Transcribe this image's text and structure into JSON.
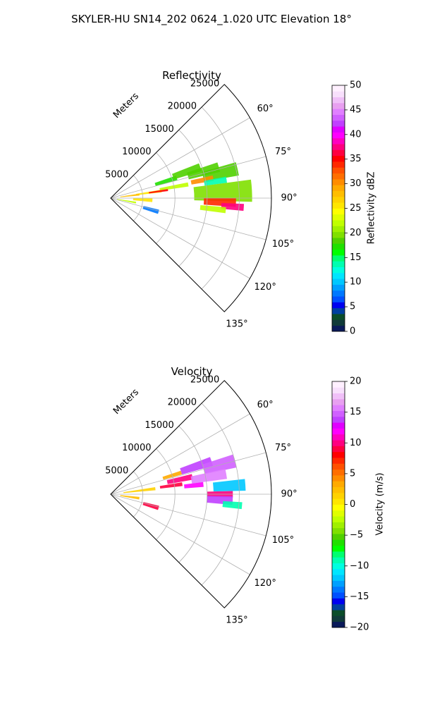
{
  "figure": {
    "suptitle": "SKYLER-HU  SN14_202  0624_1.020 UTC Elevation 18°",
    "radial_axis_label": "Meters"
  },
  "colors": {
    "grid": "#b0b0b0",
    "axis": "#000000",
    "background": "#ffffff"
  },
  "chart_data": [
    {
      "type": "polar",
      "name": "reflectivity",
      "title": "Reflectivity",
      "theta_ticks_deg": [
        60,
        75,
        90,
        105,
        120,
        135
      ],
      "theta_tick_labels": [
        "60°",
        "75°",
        "90°",
        "105°",
        "120°",
        "135°"
      ],
      "theta_range_deg": [
        45,
        135
      ],
      "r_ticks": [
        5000,
        10000,
        15000,
        20000,
        25000
      ],
      "r_tick_labels": [
        "5000",
        "10000",
        "15000",
        "20000",
        "25000"
      ],
      "r_max": 25000,
      "grid": true,
      "colorbar": {
        "label": "Reflectivity dBZ",
        "min": 0,
        "max": 50,
        "ticks": [
          0,
          5,
          10,
          15,
          20,
          25,
          30,
          35,
          40,
          45,
          50
        ],
        "tick_labels": [
          "0",
          "5",
          "10",
          "15",
          "20",
          "25",
          "30",
          "35",
          "40",
          "45",
          "50"
        ],
        "colors": [
          "#0a1a5a",
          "#103a3a",
          "#0b4d2a",
          "#0040a0",
          "#0000f0",
          "#0050ff",
          "#0078ff",
          "#00a0ff",
          "#00c8ff",
          "#00e6ff",
          "#00ffe0",
          "#00ffb0",
          "#00ff70",
          "#00ff00",
          "#20e000",
          "#50d000",
          "#80e000",
          "#a0f000",
          "#c0ff00",
          "#e0ff00",
          "#ffff00",
          "#ffe600",
          "#ffd200",
          "#ffbe00",
          "#ffaa00",
          "#ff8c00",
          "#ff6e00",
          "#ff5000",
          "#ff2800",
          "#ff0000",
          "#ff0040",
          "#ff0080",
          "#ff00c0",
          "#ff00ff",
          "#e000ff",
          "#c040ff",
          "#d060ff",
          "#e080ff",
          "#e8a0f0",
          "#f0c0f8",
          "#f8e0fc",
          "#fff0ff"
        ]
      },
      "echoes": [
        {
          "theta_deg": 73,
          "r": 9000,
          "dtheta_deg": 4,
          "dr": 3500,
          "value": 17
        },
        {
          "theta_deg": 71,
          "r": 12500,
          "dtheta_deg": 5,
          "dr": 4500,
          "value": 18
        },
        {
          "theta_deg": 74,
          "r": 15000,
          "dtheta_deg": 5,
          "dr": 5000,
          "value": 19
        },
        {
          "theta_deg": 77,
          "r": 17500,
          "dtheta_deg": 6,
          "dr": 5500,
          "value": 19
        },
        {
          "theta_deg": 80,
          "r": 10000,
          "dtheta_deg": 3,
          "dr": 4500,
          "value": 22
        },
        {
          "theta_deg": 79,
          "r": 14500,
          "dtheta_deg": 3,
          "dr": 3500,
          "value": 30
        },
        {
          "theta_deg": 82,
          "r": 6000,
          "dtheta_deg": 3,
          "dr": 4000,
          "value": 25
        },
        {
          "theta_deg": 83,
          "r": 3000,
          "dtheta_deg": 4,
          "dr": 3000,
          "value": 28
        },
        {
          "theta_deg": 81,
          "r": 16500,
          "dtheta_deg": 3,
          "dr": 3500,
          "value": 14
        },
        {
          "theta_deg": 82,
          "r": 7500,
          "dtheta_deg": 2,
          "dr": 3000,
          "value": 35
        },
        {
          "theta_deg": 87,
          "r": 17500,
          "dtheta_deg": 9,
          "dr": 9000,
          "value": 20
        },
        {
          "theta_deg": 92,
          "r": 17000,
          "dtheta_deg": 4,
          "dr": 5000,
          "value": 34
        },
        {
          "theta_deg": 94,
          "r": 19000,
          "dtheta_deg": 3,
          "dr": 3500,
          "value": 37
        },
        {
          "theta_deg": 96,
          "r": 16000,
          "dtheta_deg": 3,
          "dr": 4000,
          "value": 22
        },
        {
          "theta_deg": 93,
          "r": 5000,
          "dtheta_deg": 5,
          "dr": 3000,
          "value": 26
        },
        {
          "theta_deg": 100,
          "r": 2500,
          "dtheta_deg": 4,
          "dr": 3000,
          "value": 22
        },
        {
          "theta_deg": 106,
          "r": 6500,
          "dtheta_deg": 5,
          "dr": 2500,
          "value": 8
        }
      ]
    },
    {
      "type": "polar",
      "name": "velocity",
      "title": "Velocity",
      "theta_ticks_deg": [
        60,
        75,
        90,
        105,
        120,
        135
      ],
      "theta_tick_labels": [
        "60°",
        "75°",
        "90°",
        "105°",
        "120°",
        "135°"
      ],
      "theta_range_deg": [
        45,
        135
      ],
      "r_ticks": [
        5000,
        10000,
        15000,
        20000,
        25000
      ],
      "r_tick_labels": [
        "5000",
        "10000",
        "15000",
        "20000",
        "25000"
      ],
      "r_max": 25000,
      "grid": true,
      "colorbar": {
        "label": "Velocity (m/s)",
        "min": -20,
        "max": 20,
        "ticks": [
          -20,
          -15,
          -10,
          -5,
          0,
          5,
          10,
          15,
          20
        ],
        "tick_labels": [
          "−20",
          "−15",
          "−10",
          "−5",
          "0",
          "5",
          "10",
          "15",
          "20"
        ],
        "colors": [
          "#0a1a5a",
          "#103a3a",
          "#0b4d2a",
          "#0040a0",
          "#0000f0",
          "#0050ff",
          "#0078ff",
          "#00a0ff",
          "#00c8ff",
          "#00e6ff",
          "#00ffe0",
          "#00ffb0",
          "#00ff70",
          "#00ff00",
          "#20e000",
          "#50d000",
          "#80e000",
          "#a0f000",
          "#c0ff00",
          "#e0ff00",
          "#ffff00",
          "#ffe600",
          "#ffd200",
          "#ffbe00",
          "#ffaa00",
          "#ff8c00",
          "#ff6e00",
          "#ff5000",
          "#ff2800",
          "#ff0000",
          "#ff0040",
          "#ff0080",
          "#ff00c0",
          "#ff00ff",
          "#e000ff",
          "#c040ff",
          "#d060ff",
          "#e080ff",
          "#e8a0f0",
          "#f0c0f8",
          "#f8e0fc",
          "#fff0ff"
        ]
      },
      "echoes": [
        {
          "theta_deg": 73,
          "r": 10000,
          "dtheta_deg": 3,
          "dr": 3000,
          "value": 3
        },
        {
          "theta_deg": 72,
          "r": 14000,
          "dtheta_deg": 5,
          "dr": 5000,
          "value": 14
        },
        {
          "theta_deg": 75,
          "r": 17500,
          "dtheta_deg": 6,
          "dr": 5000,
          "value": 15
        },
        {
          "theta_deg": 78,
          "r": 11000,
          "dtheta_deg": 4,
          "dr": 4000,
          "value": 10
        },
        {
          "theta_deg": 80,
          "r": 15500,
          "dtheta_deg": 5,
          "dr": 5500,
          "value": 16
        },
        {
          "theta_deg": 83,
          "r": 4500,
          "dtheta_deg": 4,
          "dr": 5000,
          "value": 1
        },
        {
          "theta_deg": 82,
          "r": 9500,
          "dtheta_deg": 3,
          "dr": 3500,
          "value": 9
        },
        {
          "theta_deg": 86,
          "r": 18500,
          "dtheta_deg": 5,
          "dr": 5000,
          "value": -12
        },
        {
          "theta_deg": 84,
          "r": 13000,
          "dtheta_deg": 3,
          "dr": 3000,
          "value": 12
        },
        {
          "theta_deg": 90,
          "r": 17000,
          "dtheta_deg": 3,
          "dr": 4000,
          "value": 10
        },
        {
          "theta_deg": 93,
          "r": 17000,
          "dtheta_deg": 4,
          "dr": 4000,
          "value": 14
        },
        {
          "theta_deg": 95,
          "r": 19000,
          "dtheta_deg": 3,
          "dr": 3000,
          "value": -9
        },
        {
          "theta_deg": 98,
          "r": 3000,
          "dtheta_deg": 5,
          "dr": 3000,
          "value": 2
        },
        {
          "theta_deg": 106,
          "r": 6500,
          "dtheta_deg": 5,
          "dr": 2500,
          "value": 9
        }
      ]
    }
  ]
}
